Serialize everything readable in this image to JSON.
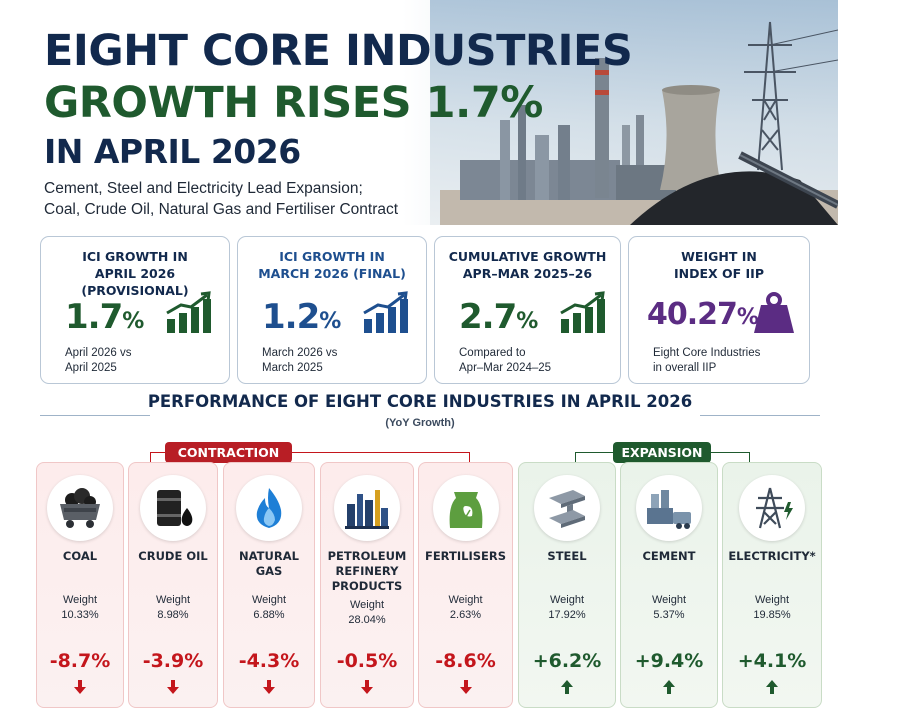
{
  "header": {
    "title_line1": "EIGHT CORE INDUSTRIES",
    "title_line2": "GROWTH RISES 1.7%",
    "title_line3": "IN APRIL 2026",
    "subtitle_line1": "Cement, Steel and Electricity Lead Expansion;",
    "subtitle_line2": "Coal, Crude Oil, Natural Gas and Fertiliser Contract"
  },
  "kpis": [
    {
      "title1": "ICI GROWTH IN",
      "title2": "APRIL 2026 (PROVISIONAL)",
      "value": "1.7",
      "unit": "%",
      "note1": "April 2026 vs",
      "note2": "April 2025",
      "icon": "bar-growth-icon",
      "color": "#1f5a2e"
    },
    {
      "title1": "ICI GROWTH IN",
      "title2": "MARCH 2026 (FINAL)",
      "value": "1.2",
      "unit": "%",
      "note1": "March 2026 vs",
      "note2": "March 2025",
      "icon": "bar-growth-icon",
      "color": "#1e4f8f"
    },
    {
      "title1": "CUMULATIVE GROWTH",
      "title2": "APR–MAR 2025–26",
      "value": "2.7",
      "unit": "%",
      "note1": "Compared to",
      "note2": "Apr–Mar 2024–25",
      "icon": "bar-growth-icon",
      "color": "#1f5a2e"
    },
    {
      "title1": "WEIGHT IN",
      "title2": "INDEX OF IIP",
      "value": "40.27",
      "unit": "%",
      "note1": "Eight Core Industries",
      "note2": "in overall IIP",
      "icon": "weight-icon",
      "color": "#5b2c83"
    }
  ],
  "section": {
    "title": "PERFORMANCE OF EIGHT CORE INDUSTRIES IN APRIL 2026",
    "subtitle": "(YoY Growth)",
    "contraction_label": "CONTRACTION",
    "expansion_label": "EXPANSION"
  },
  "industries": [
    {
      "name1": "COAL",
      "name2": "",
      "name3": "",
      "weight_label": "Weight",
      "weight": "10.33%",
      "growth": "-8.7%",
      "trend": "down",
      "icon": "coal-cart-icon"
    },
    {
      "name1": "CRUDE OIL",
      "name2": "",
      "name3": "",
      "weight_label": "Weight",
      "weight": "8.98%",
      "growth": "-3.9%",
      "trend": "down",
      "icon": "oil-barrel-icon"
    },
    {
      "name1": "NATURAL",
      "name2": "GAS",
      "name3": "",
      "weight_label": "Weight",
      "weight": "6.88%",
      "growth": "-4.3%",
      "trend": "down",
      "icon": "flame-icon"
    },
    {
      "name1": "PETROLEUM",
      "name2": "REFINERY",
      "name3": "PRODUCTS",
      "weight_label": "Weight",
      "weight": "28.04%",
      "growth": "-0.5%",
      "trend": "down",
      "icon": "refinery-icon"
    },
    {
      "name1": "FERTILISERS",
      "name2": "",
      "name3": "",
      "weight_label": "Weight",
      "weight": "2.63%",
      "growth": "-8.6%",
      "trend": "down",
      "icon": "fertiliser-bag-icon"
    },
    {
      "name1": "STEEL",
      "name2": "",
      "name3": "",
      "weight_label": "Weight",
      "weight": "17.92%",
      "growth": "+6.2%",
      "trend": "up",
      "icon": "steel-beam-icon"
    },
    {
      "name1": "CEMENT",
      "name2": "",
      "name3": "",
      "weight_label": "Weight",
      "weight": "5.37%",
      "growth": "+9.4%",
      "trend": "up",
      "icon": "cement-plant-icon"
    },
    {
      "name1": "ELECTRICITY*",
      "name2": "",
      "name3": "",
      "weight_label": "Weight",
      "weight": "19.85%",
      "growth": "+4.1%",
      "trend": "up",
      "icon": "power-tower-icon"
    }
  ],
  "colors": {
    "navy": "#12294d",
    "green": "#1f5a2e",
    "red": "#c4161c",
    "purple": "#5b2c83",
    "blue": "#1e4f8f"
  }
}
